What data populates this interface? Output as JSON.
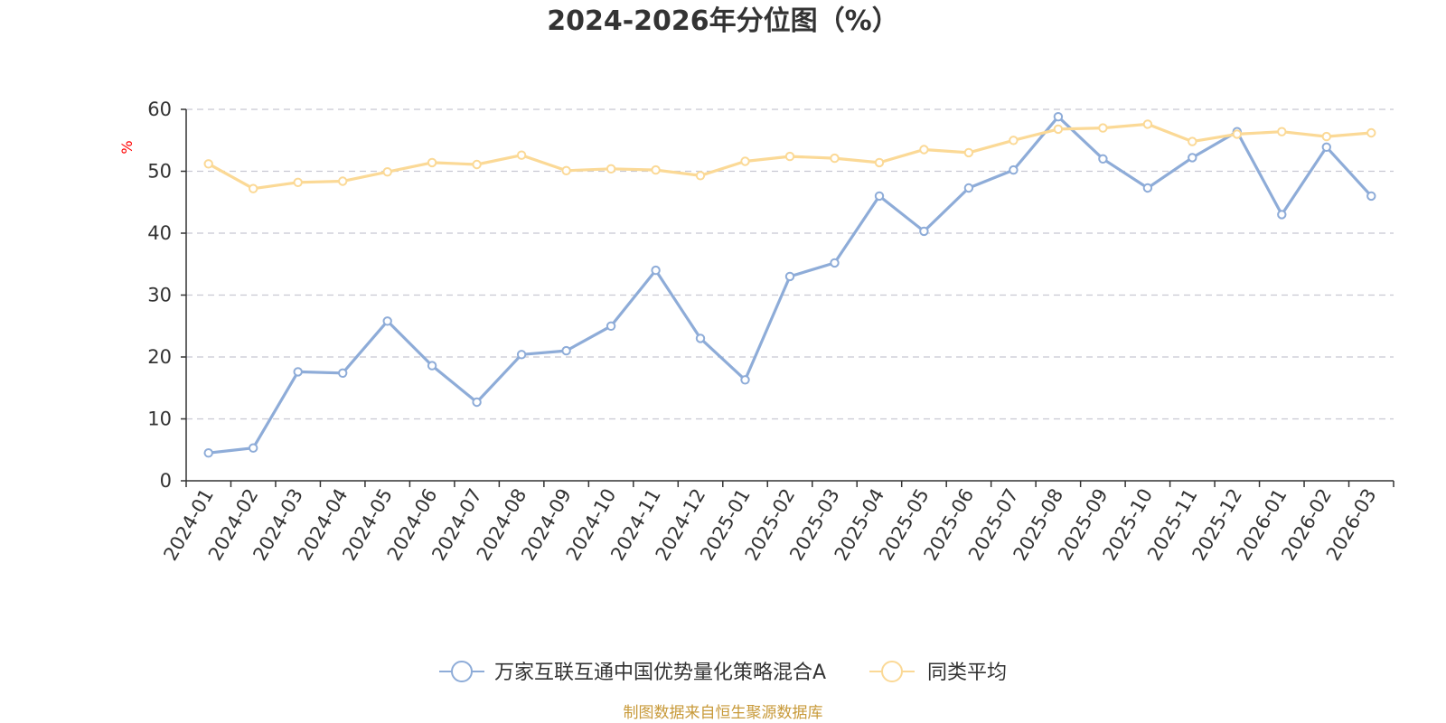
{
  "colors": {
    "fund": "#8eacd8",
    "avg": "#fbd996",
    "grid": "#c8c8d2",
    "axis": "#333333",
    "unit": "#ff0000",
    "source": "#c89a3a"
  },
  "chart_data": {
    "type": "line",
    "title": "2024-2026年分位图（%）",
    "ylabel": "%",
    "ylim": [
      0,
      60
    ],
    "yticks": [
      0,
      10,
      20,
      30,
      40,
      50,
      60
    ],
    "grid": true,
    "legend_position": "bottom-center",
    "categories": [
      "2024-01",
      "2024-02",
      "2024-03",
      "2024-04",
      "2024-05",
      "2024-06",
      "2024-07",
      "2024-08",
      "2024-09",
      "2024-10",
      "2024-11",
      "2024-12",
      "2025-01",
      "2025-02",
      "2025-03",
      "2025-04",
      "2025-05",
      "2025-06",
      "2025-07",
      "2025-08",
      "2025-09",
      "2025-10",
      "2025-11",
      "2025-12",
      "2026-01",
      "2026-02",
      "2026-03"
    ],
    "series": [
      {
        "name": "万家互联互通中国优势量化策略混合A",
        "color_key": "fund",
        "values": [
          4.5,
          5.3,
          17.6,
          17.4,
          25.8,
          18.6,
          12.7,
          20.4,
          21.0,
          25.0,
          34.0,
          23.0,
          16.3,
          33.0,
          35.2,
          46.0,
          40.3,
          47.3,
          50.2,
          58.8,
          52.0,
          47.3,
          52.2,
          56.4,
          43.0,
          53.9,
          46.0
        ]
      },
      {
        "name": "同类平均",
        "color_key": "avg",
        "values": [
          51.2,
          47.2,
          48.2,
          48.4,
          49.9,
          51.4,
          51.1,
          52.6,
          50.1,
          50.4,
          50.2,
          49.3,
          51.6,
          52.4,
          52.1,
          51.4,
          53.5,
          53.0,
          55.0,
          56.8,
          57.0,
          57.6,
          54.8,
          56.0,
          56.4,
          55.6,
          56.2
        ]
      }
    ]
  },
  "source_text": "制图数据来自恒生聚源数据库"
}
